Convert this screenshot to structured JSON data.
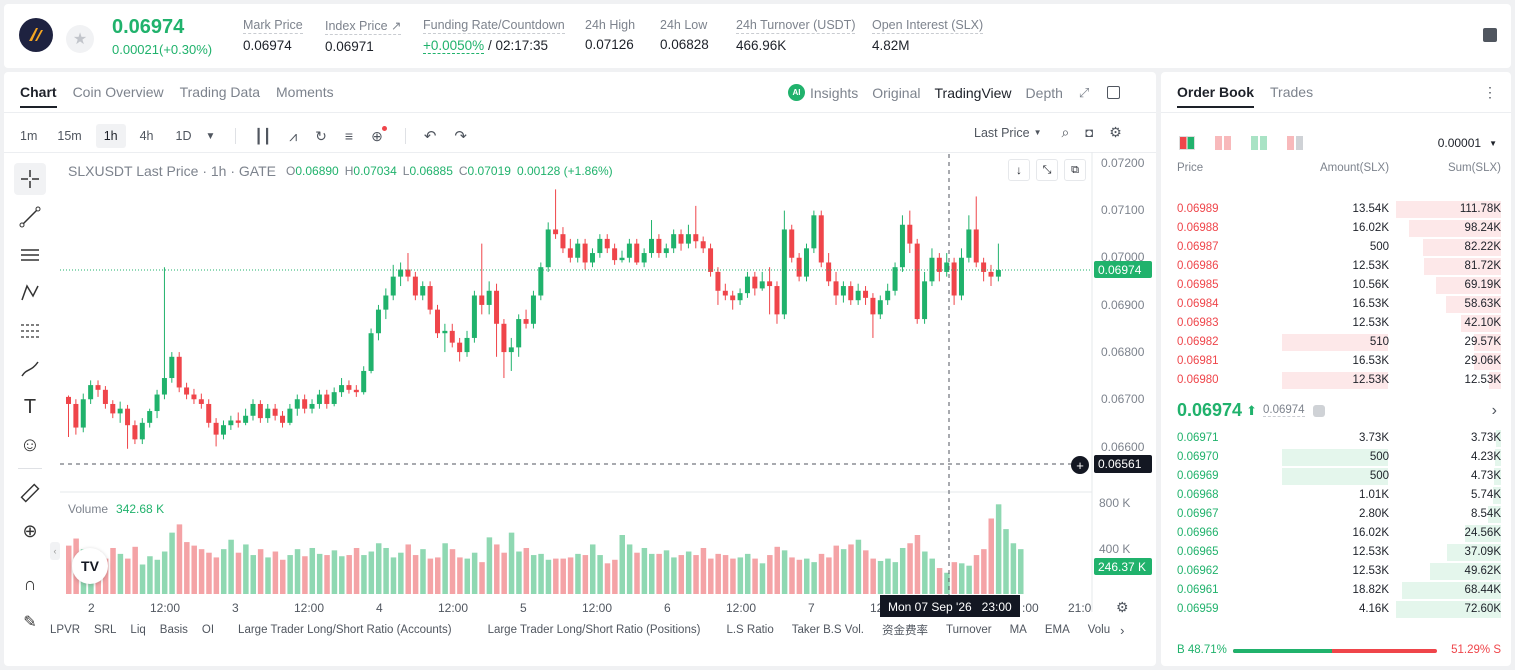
{
  "header": {
    "price": "0.06974",
    "change": "0.00021(+0.30%)",
    "stats": [
      {
        "label": "Mark Price",
        "value": "0.06974"
      },
      {
        "label": "Index Price ↗",
        "value": "0.06971"
      },
      {
        "label": "Funding Rate/Countdown",
        "value_green": "+0.0050%",
        "value": "/ 02:17:35"
      },
      {
        "label": "24h High",
        "value": "0.07126"
      },
      {
        "label": "24h Low",
        "value": "0.06828"
      },
      {
        "label": "24h Turnover (USDT)",
        "value": "466.96K"
      },
      {
        "label": "Open Interest (SLX)",
        "value": "4.82M"
      }
    ]
  },
  "chart_tabs": [
    "Chart",
    "Coin Overview",
    "Trading Data",
    "Moments"
  ],
  "view_tabs": [
    "Insights",
    "Original",
    "TradingView",
    "Depth"
  ],
  "ai_badge": "AI",
  "timeframes": [
    "1m",
    "15m",
    "1h",
    "4h",
    "1D"
  ],
  "last_price_select": "Last Price",
  "legend": {
    "symbol": "SLXUSDT Last Price · 1h · GATE",
    "o": "0.06890",
    "h": "0.07034",
    "l": "0.06885",
    "c": "0.07019",
    "chg": "0.00128 (+1.86%)",
    "o_label": "O",
    "h_label": "H",
    "l_label": "L",
    "c_label": "C"
  },
  "volume_legend": {
    "label": "Volume",
    "value": "342.68 K"
  },
  "price_axis": [
    "0.07200",
    "0.07100",
    "0.07000",
    "0.06900",
    "0.06800",
    "0.06700",
    "0.06600"
  ],
  "volume_axis": [
    "800 K",
    "400 K"
  ],
  "price_tag": "0.06974",
  "crosshair_tag": "0.06561",
  "volume_tag": "246.37 K",
  "crosshair_time": "Mon 07 Sep '26   23:00",
  "time_axis": [
    "2",
    "12:00",
    "3",
    "12:00",
    "4",
    "12:00",
    "5",
    "12:00",
    "6",
    "12:00",
    "7",
    "12",
    ":00",
    "21:0"
  ],
  "indicators": [
    "LPVR",
    "SRL",
    "Liq",
    "Basis",
    "OI",
    "Large Trader Long/Short Ratio (Accounts)",
    "Large Trader Long/Short Ratio (Positions)",
    "L.S Ratio",
    "Taker B.S Vol.",
    "资金费率",
    "Turnover",
    "MA",
    "EMA",
    "Volu"
  ],
  "orderbook": {
    "tabs": [
      "Order Book",
      "Trades"
    ],
    "precision": "0.00001",
    "headers": [
      "Price",
      "Amount(SLX)",
      "Sum(SLX)"
    ],
    "asks": [
      {
        "price": "0.06989",
        "amount": "13.54K",
        "sum": "111.78K",
        "amt_frac": 0.0,
        "sum_frac": 1.0
      },
      {
        "price": "0.06988",
        "amount": "16.02K",
        "sum": "98.24K",
        "amt_frac": 0.0,
        "sum_frac": 0.88
      },
      {
        "price": "0.06987",
        "amount": "500",
        "sum": "82.22K",
        "amt_frac": 0.0,
        "sum_frac": 0.74
      },
      {
        "price": "0.06986",
        "amount": "12.53K",
        "sum": "81.72K",
        "amt_frac": 0.0,
        "sum_frac": 0.73
      },
      {
        "price": "0.06985",
        "amount": "10.56K",
        "sum": "69.19K",
        "amt_frac": 0.0,
        "sum_frac": 0.62
      },
      {
        "price": "0.06984",
        "amount": "16.53K",
        "sum": "58.63K",
        "amt_frac": 0.0,
        "sum_frac": 0.52
      },
      {
        "price": "0.06983",
        "amount": "12.53K",
        "sum": "42.10K",
        "amt_frac": 0.0,
        "sum_frac": 0.38
      },
      {
        "price": "0.06982",
        "amount": "510",
        "sum": "29.57K",
        "amt_frac": 0.44,
        "sum_frac": 0.26
      },
      {
        "price": "0.06981",
        "amount": "16.53K",
        "sum": "29.06K",
        "amt_frac": 0.0,
        "sum_frac": 0.26
      },
      {
        "price": "0.06980",
        "amount": "12.53K",
        "sum": "12.53K",
        "amt_frac": 0.44,
        "sum_frac": 0.11
      }
    ],
    "last_price": "0.06974",
    "mark_price": "0.06974",
    "bids": [
      {
        "price": "0.06971",
        "amount": "3.73K",
        "sum": "3.73K",
        "amt_frac": 0.0,
        "sum_frac": 0.05
      },
      {
        "price": "0.06970",
        "amount": "500",
        "sum": "4.23K",
        "amt_frac": 0.44,
        "sum_frac": 0.06
      },
      {
        "price": "0.06969",
        "amount": "500",
        "sum": "4.73K",
        "amt_frac": 0.44,
        "sum_frac": 0.07
      },
      {
        "price": "0.06968",
        "amount": "1.01K",
        "sum": "5.74K",
        "amt_frac": 0.0,
        "sum_frac": 0.08
      },
      {
        "price": "0.06967",
        "amount": "2.80K",
        "sum": "8.54K",
        "amt_frac": 0.0,
        "sum_frac": 0.12
      },
      {
        "price": "0.06966",
        "amount": "16.02K",
        "sum": "24.56K",
        "amt_frac": 0.0,
        "sum_frac": 0.34
      },
      {
        "price": "0.06965",
        "amount": "12.53K",
        "sum": "37.09K",
        "amt_frac": 0.0,
        "sum_frac": 0.51
      },
      {
        "price": "0.06962",
        "amount": "12.53K",
        "sum": "49.62K",
        "amt_frac": 0.0,
        "sum_frac": 0.68
      },
      {
        "price": "0.06961",
        "amount": "18.82K",
        "sum": "68.44K",
        "amt_frac": 0.0,
        "sum_frac": 0.94
      },
      {
        "price": "0.06959",
        "amount": "4.16K",
        "sum": "72.60K",
        "amt_frac": 0.0,
        "sum_frac": 1.0
      }
    ],
    "buy_ratio": "B 48.71%",
    "sell_ratio": "51.29% S",
    "buy_frac": 0.4871
  },
  "colors": {
    "up": "#20b26c",
    "down": "#ef454a",
    "up_bg": "#e4f6ec",
    "down_bg": "#fde8e9"
  },
  "chart_data": {
    "type": "candlestick",
    "title": "SLXUSDT Last Price · 1h · GATE",
    "ylim": [
      0.0655,
      0.0722
    ],
    "volume_ylim": [
      0,
      1000
    ],
    "candles": [
      [
        0.06705,
        0.0669,
        0.06708,
        0.0662
      ],
      [
        0.0669,
        0.0664,
        0.067,
        0.06625
      ],
      [
        0.0664,
        0.067,
        0.06712,
        0.0663
      ],
      [
        0.067,
        0.0673,
        0.0674,
        0.0669
      ],
      [
        0.0673,
        0.0672,
        0.0674,
        0.06705
      ],
      [
        0.0672,
        0.0669,
        0.06728,
        0.0668
      ],
      [
        0.0669,
        0.0667,
        0.06698,
        0.0666
      ],
      [
        0.0667,
        0.0668,
        0.06695,
        0.0665
      ],
      [
        0.0668,
        0.06645,
        0.06688,
        0.06595
      ],
      [
        0.06645,
        0.06615,
        0.06655,
        0.06605
      ],
      [
        0.06615,
        0.0665,
        0.0666,
        0.06605
      ],
      [
        0.0665,
        0.06675,
        0.0668,
        0.0664
      ],
      [
        0.06675,
        0.0671,
        0.0672,
        0.0666
      ],
      [
        0.0671,
        0.06745,
        0.0698,
        0.067
      ],
      [
        0.06745,
        0.0679,
        0.068,
        0.06735
      ],
      [
        0.0679,
        0.06725,
        0.068,
        0.06715
      ],
      [
        0.06725,
        0.0671,
        0.06735,
        0.067
      ],
      [
        0.0671,
        0.067,
        0.06722,
        0.0669
      ],
      [
        0.067,
        0.0669,
        0.06712,
        0.0668
      ],
      [
        0.0669,
        0.0665,
        0.067,
        0.0664
      ],
      [
        0.0665,
        0.06625,
        0.0666,
        0.066
      ],
      [
        0.06625,
        0.06645,
        0.06655,
        0.06615
      ],
      [
        0.06645,
        0.06655,
        0.06665,
        0.06635
      ],
      [
        0.06655,
        0.0665,
        0.06672,
        0.0664
      ],
      [
        0.0665,
        0.06665,
        0.0668,
        0.06645
      ],
      [
        0.06665,
        0.0669,
        0.067,
        0.06655
      ],
      [
        0.0669,
        0.0666,
        0.06698,
        0.0665
      ],
      [
        0.0666,
        0.0668,
        0.0669,
        0.0665
      ],
      [
        0.0668,
        0.06665,
        0.0669,
        0.06655
      ],
      [
        0.06665,
        0.0665,
        0.06675,
        0.0664
      ],
      [
        0.0665,
        0.0668,
        0.0669,
        0.06645
      ],
      [
        0.0668,
        0.067,
        0.0671,
        0.06665
      ],
      [
        0.067,
        0.0668,
        0.0671,
        0.0667
      ],
      [
        0.0668,
        0.0669,
        0.067,
        0.0667
      ],
      [
        0.0669,
        0.0671,
        0.0672,
        0.0668
      ],
      [
        0.0671,
        0.0669,
        0.0672,
        0.0668
      ],
      [
        0.0669,
        0.06715,
        0.06725,
        0.06685
      ],
      [
        0.06715,
        0.0673,
        0.06745,
        0.06705
      ],
      [
        0.0673,
        0.0672,
        0.0674,
        0.06712
      ],
      [
        0.0672,
        0.06715,
        0.0673,
        0.06705
      ],
      [
        0.06715,
        0.0676,
        0.0677,
        0.0671
      ],
      [
        0.0676,
        0.0684,
        0.0685,
        0.06755
      ],
      [
        0.0684,
        0.0689,
        0.069,
        0.06825
      ],
      [
        0.0689,
        0.0692,
        0.06935,
        0.0687
      ],
      [
        0.0692,
        0.0696,
        0.06985,
        0.0691
      ],
      [
        0.0696,
        0.06975,
        0.0699,
        0.0694
      ],
      [
        0.06975,
        0.0696,
        0.0701,
        0.0695
      ],
      [
        0.0696,
        0.0692,
        0.0697,
        0.0691
      ],
      [
        0.0692,
        0.0694,
        0.0695,
        0.0691
      ],
      [
        0.0694,
        0.0689,
        0.0695,
        0.0688
      ],
      [
        0.0689,
        0.0684,
        0.069,
        0.0683
      ],
      [
        0.0684,
        0.06845,
        0.0686,
        0.068
      ],
      [
        0.06845,
        0.0682,
        0.0686,
        0.0681
      ],
      [
        0.0682,
        0.068,
        0.0683,
        0.0678
      ],
      [
        0.068,
        0.0683,
        0.06845,
        0.0679
      ],
      [
        0.0683,
        0.0692,
        0.0693,
        0.0682
      ],
      [
        0.0692,
        0.069,
        0.0703,
        0.0688
      ],
      [
        0.069,
        0.0693,
        0.0695,
        0.0688
      ],
      [
        0.0693,
        0.0686,
        0.06945,
        0.0679
      ],
      [
        0.0686,
        0.068,
        0.0687,
        0.06745
      ],
      [
        0.068,
        0.0681,
        0.0683,
        0.0676
      ],
      [
        0.0681,
        0.0687,
        0.0688,
        0.0679
      ],
      [
        0.0687,
        0.0686,
        0.0689,
        0.0685
      ],
      [
        0.0686,
        0.0692,
        0.0693,
        0.0685
      ],
      [
        0.0692,
        0.0698,
        0.0699,
        0.0691
      ],
      [
        0.0698,
        0.0706,
        0.07075,
        0.0697
      ],
      [
        0.0706,
        0.0705,
        0.07145,
        0.0704
      ],
      [
        0.0705,
        0.0702,
        0.07065,
        0.0701
      ],
      [
        0.0702,
        0.07,
        0.0704,
        0.0699
      ],
      [
        0.07,
        0.0703,
        0.0704,
        0.0699
      ],
      [
        0.0703,
        0.0699,
        0.0704,
        0.06975
      ],
      [
        0.0699,
        0.0701,
        0.0702,
        0.0698
      ],
      [
        0.0701,
        0.0704,
        0.0705,
        0.07
      ],
      [
        0.0704,
        0.0702,
        0.0705,
        0.0701
      ],
      [
        0.0702,
        0.06995,
        0.0703,
        0.06985
      ],
      [
        0.06995,
        0.07,
        0.07015,
        0.0699
      ],
      [
        0.07,
        0.0703,
        0.0704,
        0.0699
      ],
      [
        0.0703,
        0.0699,
        0.0704,
        0.06985
      ],
      [
        0.0699,
        0.0701,
        0.0702,
        0.0698
      ],
      [
        0.0701,
        0.0704,
        0.0708,
        0.07
      ],
      [
        0.0704,
        0.0701,
        0.0705,
        0.07
      ],
      [
        0.0701,
        0.0702,
        0.0703,
        0.07
      ],
      [
        0.0702,
        0.0705,
        0.0706,
        0.0701
      ],
      [
        0.0705,
        0.0703,
        0.0706,
        0.07015
      ],
      [
        0.0703,
        0.0705,
        0.0707,
        0.0702
      ],
      [
        0.0705,
        0.07035,
        0.0711,
        0.0702
      ],
      [
        0.07035,
        0.0702,
        0.07045,
        0.0701
      ],
      [
        0.0702,
        0.0697,
        0.0703,
        0.0696
      ],
      [
        0.0697,
        0.0693,
        0.0698,
        0.069
      ],
      [
        0.0693,
        0.0692,
        0.06945,
        0.0691
      ],
      [
        0.0692,
        0.0691,
        0.0693,
        0.0689
      ],
      [
        0.0691,
        0.06925,
        0.06935,
        0.069
      ],
      [
        0.06925,
        0.0696,
        0.0697,
        0.06915
      ],
      [
        0.0696,
        0.06935,
        0.0697,
        0.0692
      ],
      [
        0.06935,
        0.0695,
        0.0697,
        0.0693
      ],
      [
        0.0695,
        0.0694,
        0.0698,
        0.0688
      ],
      [
        0.0694,
        0.0688,
        0.0695,
        0.0686
      ],
      [
        0.0688,
        0.0706,
        0.071,
        0.0687
      ],
      [
        0.0706,
        0.07,
        0.0707,
        0.0699
      ],
      [
        0.07,
        0.0696,
        0.0701,
        0.0695
      ],
      [
        0.0696,
        0.0702,
        0.0703,
        0.0695
      ],
      [
        0.0702,
        0.0709,
        0.071,
        0.0701
      ],
      [
        0.0709,
        0.0699,
        0.071,
        0.0698
      ],
      [
        0.0699,
        0.0695,
        0.0701,
        0.0694
      ],
      [
        0.0695,
        0.0692,
        0.0697,
        0.069
      ],
      [
        0.0692,
        0.0694,
        0.0695,
        0.06905
      ],
      [
        0.0694,
        0.0691,
        0.0695,
        0.069
      ],
      [
        0.0691,
        0.0693,
        0.06945,
        0.069
      ],
      [
        0.0693,
        0.06915,
        0.0694,
        0.069
      ],
      [
        0.06915,
        0.0688,
        0.06925,
        0.0683
      ],
      [
        0.0688,
        0.0691,
        0.0692,
        0.0687
      ],
      [
        0.0691,
        0.0693,
        0.06945,
        0.069
      ],
      [
        0.0693,
        0.0698,
        0.0699,
        0.0692
      ],
      [
        0.0698,
        0.0707,
        0.0709,
        0.0697
      ],
      [
        0.0707,
        0.0703,
        0.071,
        0.0701
      ],
      [
        0.0703,
        0.0687,
        0.0704,
        0.0686
      ],
      [
        0.0687,
        0.0695,
        0.0697,
        0.0686
      ],
      [
        0.0695,
        0.07,
        0.0702,
        0.0694
      ],
      [
        0.07,
        0.0697,
        0.0701,
        0.0695
      ],
      [
        0.0697,
        0.0699,
        0.0701,
        0.0696
      ],
      [
        0.0699,
        0.0692,
        0.07,
        0.069
      ],
      [
        0.0692,
        0.07,
        0.0702,
        0.0691
      ],
      [
        0.07,
        0.0706,
        0.0709,
        0.0699
      ],
      [
        0.0706,
        0.0699,
        0.0713,
        0.0698
      ],
      [
        0.0699,
        0.0697,
        0.07,
        0.0695
      ],
      [
        0.0697,
        0.0696,
        0.06985,
        0.0694
      ],
      [
        0.0696,
        0.06974,
        0.0703,
        0.0695
      ]
    ],
    "volumes": [
      410,
      470,
      380,
      310,
      360,
      300,
      390,
      340,
      300,
      400,
      250,
      320,
      290,
      360,
      520,
      590,
      440,
      410,
      380,
      350,
      310,
      380,
      460,
      350,
      420,
      330,
      380,
      310,
      360,
      290,
      330,
      380,
      320,
      390,
      340,
      330,
      370,
      320,
      330,
      390,
      330,
      360,
      430,
      390,
      310,
      350,
      420,
      330,
      380,
      300,
      310,
      430,
      380,
      310,
      300,
      350,
      270,
      480,
      420,
      350,
      520,
      360,
      390,
      330,
      340,
      290,
      300,
      300,
      310,
      340,
      330,
      420,
      330,
      260,
      290,
      500,
      420,
      350,
      390,
      340,
      340,
      370,
      310,
      330,
      360,
      330,
      390,
      300,
      340,
      330,
      300,
      310,
      340,
      300,
      260,
      330,
      400,
      370,
      310,
      290,
      300,
      270,
      340,
      310,
      410,
      380,
      420,
      460,
      370,
      300,
      280,
      300,
      270,
      390,
      430,
      500,
      360,
      300,
      220,
      180,
      270,
      260,
      240,
      330,
      380,
      640,
      760,
      550,
      430,
      380
    ]
  }
}
